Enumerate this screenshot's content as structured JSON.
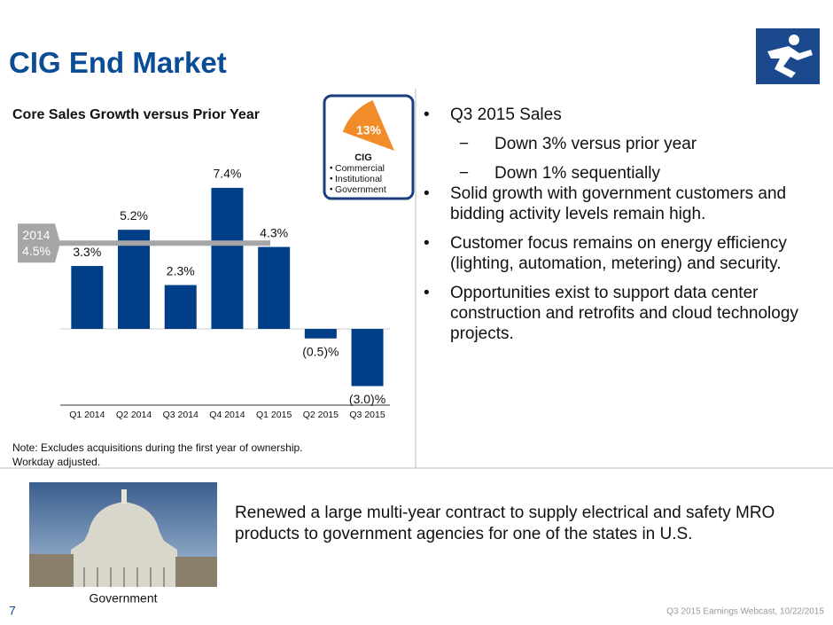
{
  "title": "CIG End Market",
  "chart_data": {
    "type": "bar",
    "title": "Core Sales Growth versus Prior Year",
    "categories": [
      "Q1 2014",
      "Q2 2014",
      "Q3 2014",
      "Q4 2014",
      "Q1 2015",
      "Q2 2015",
      "Q3 2015"
    ],
    "values": [
      3.3,
      5.2,
      2.3,
      7.4,
      4.3,
      -0.5,
      -3.0
    ],
    "value_labels": [
      "3.3%",
      "5.2%",
      "2.3%",
      "7.4%",
      "4.3%",
      "(0.5)%",
      "(3.0)%"
    ],
    "color": "#003f87",
    "reference": {
      "name": "2014",
      "value": 4.5,
      "value_label": "4.5%",
      "color": "#a6a6a6"
    },
    "note": [
      "Note:  Excludes acquisitions during the first year of ownership.",
      "Workday adjusted."
    ]
  },
  "inset": {
    "value": 13,
    "value_label": "13%",
    "color": "#f28c28",
    "name": "CIG",
    "items": [
      "Commercial",
      "Institutional",
      "Government"
    ]
  },
  "bullets": [
    {
      "text": "Q3 2015 Sales",
      "sub": [
        "Down 3% versus prior year",
        "Down 1% sequentially"
      ]
    },
    {
      "text": "Solid growth with government customers and bidding activity levels remain high."
    },
    {
      "text": "Customer focus remains on energy efficiency (lighting, automation, metering) and security."
    },
    {
      "text": "Opportunities exist to support data center construction and retrofits and cloud technology projects."
    }
  ],
  "highlight": "Renewed a large multi-year contract to supply electrical and safety MRO products to government agencies for one of the states in U.S.",
  "image_caption": "Government",
  "page_number": "7",
  "footer": "Q3 2015 Earnings Webcast, 10/22/2015"
}
